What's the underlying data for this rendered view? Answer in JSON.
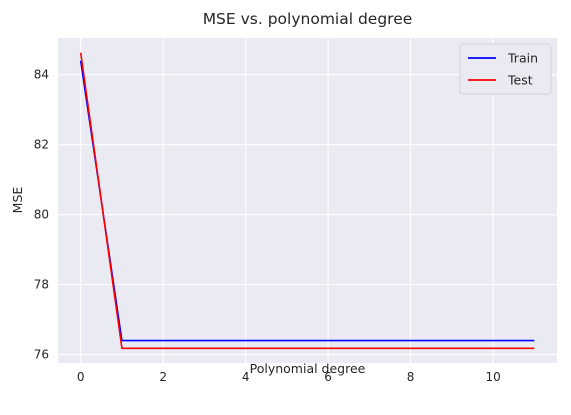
{
  "chart_data": {
    "type": "line",
    "title": "MSE vs. polynomial degree",
    "xlabel": "Polynomial degree",
    "ylabel": "MSE",
    "x": [
      0,
      1,
      2,
      3,
      4,
      5,
      6,
      7,
      8,
      9,
      10,
      11
    ],
    "series": [
      {
        "name": "Train",
        "color": "#0000ff",
        "values": [
          84.4,
          76.4,
          76.4,
          76.4,
          76.4,
          76.4,
          76.4,
          76.4,
          76.4,
          76.4,
          76.4,
          76.4
        ]
      },
      {
        "name": "Test",
        "color": "#ff0000",
        "values": [
          84.63,
          76.18,
          76.18,
          76.18,
          76.18,
          76.18,
          76.18,
          76.18,
          76.18,
          76.18,
          76.18,
          76.18
        ]
      }
    ],
    "xlim": [
      -0.55,
      11.55
    ],
    "ylim": [
      75.76,
      85.05
    ],
    "xticks": [
      0,
      2,
      4,
      6,
      8,
      10
    ],
    "yticks": [
      76,
      78,
      80,
      82,
      84
    ],
    "grid": true,
    "legend_position": "top-right",
    "plot_background": "#eaeaf2"
  }
}
